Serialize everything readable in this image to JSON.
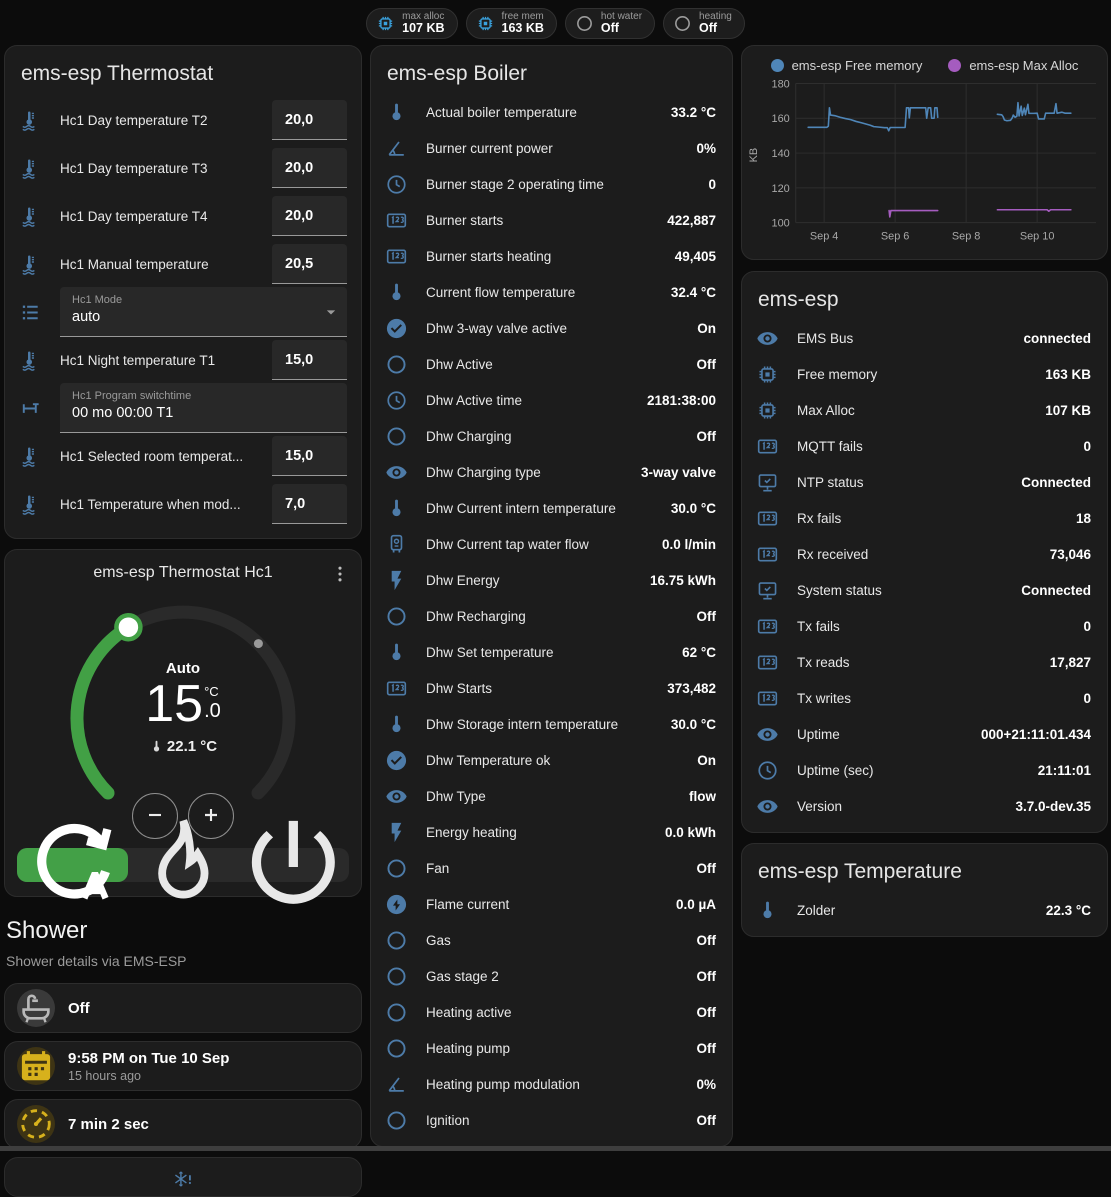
{
  "colors": {
    "accent_green": "#43a047",
    "icon_blue": "#4d7ba8",
    "badge_blue": "#3aa2de",
    "amber": "#d7b11c",
    "chart_free_memory": "#4f86b8",
    "chart_max_alloc": "#a55cbf"
  },
  "badges": [
    {
      "icon": "chip",
      "tone": "blue",
      "label": "max alloc",
      "value": "107 KB"
    },
    {
      "icon": "chip",
      "tone": "blue",
      "label": "free mem",
      "value": "163 KB"
    },
    {
      "icon": "circle",
      "tone": "grey",
      "label": "hot water",
      "value": "Off"
    },
    {
      "icon": "circle",
      "tone": "grey",
      "label": "heating",
      "value": "Off"
    }
  ],
  "thermostat_card": {
    "title": "ems-esp Thermostat",
    "rows": [
      {
        "type": "number",
        "icon": "thermometer-water",
        "label": "Hc1 Day temperature T2",
        "value": "20,0"
      },
      {
        "type": "number",
        "icon": "thermometer-water",
        "label": "Hc1 Day temperature T3",
        "value": "20,0"
      },
      {
        "type": "number",
        "icon": "thermometer-water",
        "label": "Hc1 Day temperature T4",
        "value": "20,0"
      },
      {
        "type": "number",
        "icon": "thermometer-water",
        "label": "Hc1 Manual temperature",
        "value": "20,5"
      },
      {
        "type": "select",
        "icon": "list",
        "label": "Hc1 Mode",
        "value": "auto"
      },
      {
        "type": "number",
        "icon": "thermometer-water",
        "label": "Hc1 Night temperature T1",
        "value": "15,0"
      },
      {
        "type": "text",
        "icon": "valve",
        "label": "Hc1 Program switchtime",
        "value": "00 mo 00:00 T1"
      },
      {
        "type": "number",
        "icon": "thermometer-water",
        "label": "Hc1 Selected room temperat...",
        "value": "15,0"
      },
      {
        "type": "number",
        "icon": "thermometer-water",
        "label": "Hc1 Temperature when mod...",
        "value": "7,0"
      }
    ]
  },
  "dial_card": {
    "title": "ems-esp Thermostat Hc1",
    "menu_icon": "dots-vertical",
    "mode_label": "Auto",
    "target_int": "15",
    "target_unit": "°C",
    "target_frac": ".0",
    "current_temp": "22.1 °C",
    "decrease_icon": "minus",
    "increase_icon": "plus",
    "mode_buttons": [
      {
        "icon": "thermostat-auto",
        "name": "auto",
        "active": true
      },
      {
        "icon": "fire",
        "name": "heat",
        "active": false
      },
      {
        "icon": "power",
        "name": "off",
        "active": false
      }
    ]
  },
  "shower": {
    "heading": "Shower",
    "subtitle": "Shower details via EMS-ESP",
    "items": [
      {
        "icon": "bathtub",
        "tone": "dim",
        "value": "Off"
      },
      {
        "icon": "calendar",
        "tone": "amber",
        "value": "9:58 PM on Tue 10 Sep",
        "secondary": "15 hours ago"
      },
      {
        "icon": "timer",
        "tone": "amber",
        "value": "7 min 2 sec"
      }
    ],
    "partial_icon": "snowflake-alert"
  },
  "boiler_card": {
    "title": "ems-esp Boiler",
    "rows": [
      {
        "icon": "thermometer",
        "label": "Actual boiler temperature",
        "value": "33.2 °C"
      },
      {
        "icon": "angle",
        "label": "Burner current power",
        "value": "0%"
      },
      {
        "icon": "clock",
        "label": "Burner stage 2 operating time",
        "value": "0"
      },
      {
        "icon": "counter",
        "label": "Burner starts",
        "value": "422,887"
      },
      {
        "icon": "counter",
        "label": "Burner starts heating",
        "value": "49,405"
      },
      {
        "icon": "thermometer",
        "label": "Current flow temperature",
        "value": "32.4 °C"
      },
      {
        "icon": "check-circle",
        "label": "Dhw 3-way valve active",
        "value": "On"
      },
      {
        "icon": "circle",
        "label": "Dhw Active",
        "value": "Off"
      },
      {
        "icon": "clock",
        "label": "Dhw Active time",
        "value": "2181:38:00"
      },
      {
        "icon": "circle",
        "label": "Dhw Charging",
        "value": "Off"
      },
      {
        "icon": "eye",
        "label": "Dhw Charging type",
        "value": "3-way valve"
      },
      {
        "icon": "thermometer",
        "label": "Dhw Current intern temperature",
        "value": "30.0 °C"
      },
      {
        "icon": "water-boiler",
        "label": "Dhw Current tap water flow",
        "value": "0.0 l/min"
      },
      {
        "icon": "flash",
        "label": "Dhw Energy",
        "value": "16.75 kWh"
      },
      {
        "icon": "circle",
        "label": "Dhw Recharging",
        "value": "Off"
      },
      {
        "icon": "thermometer",
        "label": "Dhw Set temperature",
        "value": "62 °C"
      },
      {
        "icon": "counter",
        "label": "Dhw Starts",
        "value": "373,482"
      },
      {
        "icon": "thermometer",
        "label": "Dhw Storage intern temperature",
        "value": "30.0 °C"
      },
      {
        "icon": "check-circle",
        "label": "Dhw Temperature ok",
        "value": "On"
      },
      {
        "icon": "eye",
        "label": "Dhw Type",
        "value": "flow"
      },
      {
        "icon": "flash",
        "label": "Energy heating",
        "value": "0.0 kWh"
      },
      {
        "icon": "circle",
        "label": "Fan",
        "value": "Off"
      },
      {
        "icon": "flash-circle",
        "label": "Flame current",
        "value": "0.0 µA"
      },
      {
        "icon": "circle",
        "label": "Gas",
        "value": "Off"
      },
      {
        "icon": "circle",
        "label": "Gas stage 2",
        "value": "Off"
      },
      {
        "icon": "circle",
        "label": "Heating active",
        "value": "Off"
      },
      {
        "icon": "circle",
        "label": "Heating pump",
        "value": "Off"
      },
      {
        "icon": "angle",
        "label": "Heating pump modulation",
        "value": "0%"
      },
      {
        "icon": "circle",
        "label": "Ignition",
        "value": "Off"
      }
    ]
  },
  "chart_data": {
    "type": "line",
    "ylabel": "KB",
    "ylim": [
      96,
      184
    ],
    "yticks": [
      100,
      120,
      140,
      160,
      180
    ],
    "xtick_labels": [
      "Sep 4",
      "Sep 6",
      "Sep 8",
      "Sep 10"
    ],
    "xtick_days": [
      4,
      6,
      8,
      10
    ],
    "grid": true,
    "legend_position": "top",
    "series": [
      {
        "name": "ems-esp Free memory",
        "color": "#4f86b8",
        "segments": [
          [
            [
              3.55,
              154.8
            ],
            [
              4.08,
              154.8
            ],
            [
              4.12,
              155.5
            ],
            [
              4.15,
              166
            ],
            [
              4.18,
              161.8
            ],
            [
              4.3,
              161.5
            ],
            [
              4.45,
              160.6
            ],
            [
              4.6,
              159.8
            ],
            [
              4.75,
              159.2
            ],
            [
              4.9,
              158.2
            ],
            [
              5.05,
              157.4
            ],
            [
              5.2,
              156.6
            ],
            [
              5.3,
              156
            ],
            [
              5.4,
              155.2
            ],
            [
              5.55,
              154.9
            ],
            [
              5.7,
              154.6
            ],
            [
              5.78,
              154.6
            ],
            [
              5.82,
              152.8
            ],
            [
              5.86,
              154.7
            ],
            [
              6.28,
              154.7
            ],
            [
              6.32,
              166
            ],
            [
              6.38,
              166
            ],
            [
              6.4,
              160.2
            ],
            [
              6.43,
              166
            ],
            [
              6.86,
              166
            ],
            [
              6.89,
              160
            ],
            [
              6.93,
              166
            ],
            [
              7.0,
              166
            ],
            [
              7.03,
              160
            ],
            [
              7.1,
              160
            ],
            [
              7.12,
              166
            ],
            [
              7.18,
              166
            ],
            [
              7.2,
              160.5
            ]
          ],
          [
            [
              8.88,
              162.3
            ],
            [
              9.0,
              162
            ],
            [
              9.04,
              161
            ],
            [
              9.08,
              159
            ],
            [
              9.15,
              158.6
            ],
            [
              9.25,
              158.8
            ],
            [
              9.3,
              160.3
            ],
            [
              9.33,
              161.8
            ],
            [
              9.38,
              160.6
            ],
            [
              9.43,
              161.2
            ],
            [
              9.46,
              169
            ],
            [
              9.49,
              161.3
            ],
            [
              9.55,
              167
            ],
            [
              9.58,
              161.6
            ],
            [
              9.64,
              165.8
            ],
            [
              9.67,
              162
            ],
            [
              9.74,
              168
            ],
            [
              9.77,
              162.8
            ],
            [
              9.9,
              162.8
            ],
            [
              10.0,
              162.9
            ],
            [
              10.04,
              159.6
            ],
            [
              10.2,
              159.6
            ],
            [
              10.24,
              162.9
            ],
            [
              10.48,
              162.9
            ],
            [
              10.53,
              168.4
            ],
            [
              10.56,
              162.9
            ],
            [
              10.7,
              163.5
            ],
            [
              10.78,
              162.9
            ],
            [
              10.95,
              162.9
            ]
          ]
        ]
      },
      {
        "name": "ems-esp Max Alloc",
        "color": "#a55cbf",
        "segments": [
          [
            [
              5.83,
              107
            ],
            [
              5.85,
              103.3
            ],
            [
              5.88,
              107
            ],
            [
              7.2,
              107
            ]
          ],
          [
            [
              8.88,
              107.4
            ],
            [
              10.28,
              107.4
            ],
            [
              10.33,
              106.6
            ],
            [
              10.38,
              107.4
            ],
            [
              10.95,
              107.4
            ]
          ]
        ]
      }
    ]
  },
  "system_card": {
    "title": "ems-esp",
    "rows": [
      {
        "icon": "eye",
        "label": "EMS Bus",
        "value": "connected"
      },
      {
        "icon": "chip",
        "label": "Free memory",
        "value": "163 KB"
      },
      {
        "icon": "chip",
        "label": "Max Alloc",
        "value": "107 KB"
      },
      {
        "icon": "counter",
        "label": "MQTT fails",
        "value": "0"
      },
      {
        "icon": "monitor-check",
        "label": "NTP status",
        "value": "Connected"
      },
      {
        "icon": "counter",
        "label": "Rx fails",
        "value": "18"
      },
      {
        "icon": "counter",
        "label": "Rx received",
        "value": "73,046"
      },
      {
        "icon": "monitor-check",
        "label": "System status",
        "value": "Connected"
      },
      {
        "icon": "counter",
        "label": "Tx fails",
        "value": "0"
      },
      {
        "icon": "counter",
        "label": "Tx reads",
        "value": "17,827"
      },
      {
        "icon": "counter",
        "label": "Tx writes",
        "value": "0"
      },
      {
        "icon": "eye",
        "label": "Uptime",
        "value": "000+21:11:01.434"
      },
      {
        "icon": "clock",
        "label": "Uptime (sec)",
        "value": "21:11:01"
      },
      {
        "icon": "eye",
        "label": "Version",
        "value": "3.7.0-dev.35"
      }
    ]
  },
  "temperature_card": {
    "title": "ems-esp Temperature",
    "rows": [
      {
        "icon": "thermometer",
        "label": "Zolder",
        "value": "22.3 °C"
      }
    ]
  }
}
